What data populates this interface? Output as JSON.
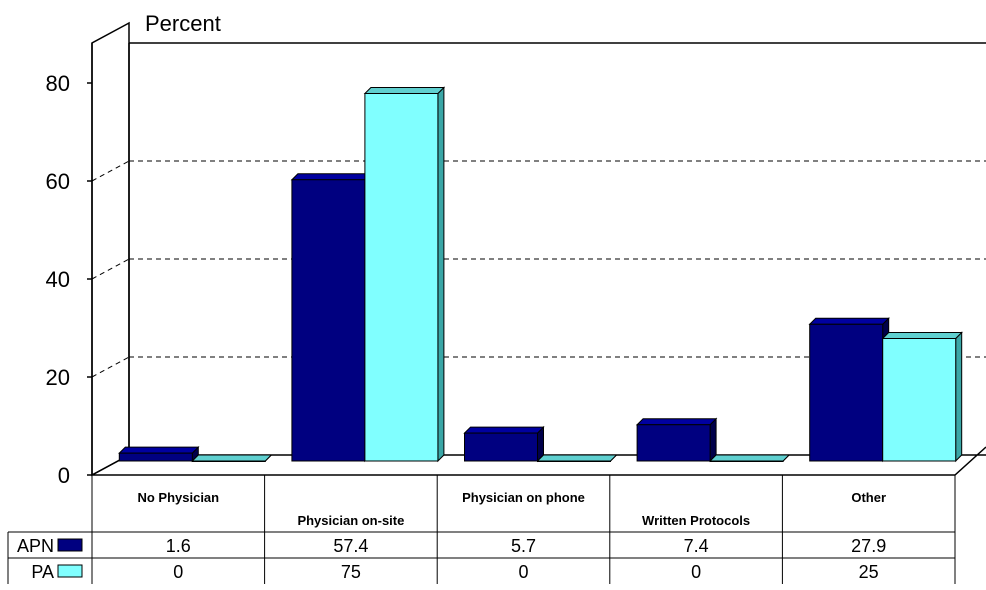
{
  "chart_data": {
    "type": "bar",
    "ylabel": "Percent",
    "ylim": [
      0,
      80
    ],
    "yticks": [
      0,
      20,
      40,
      60,
      80
    ],
    "grid": true,
    "categories": [
      "No Physician",
      "Physician on-site",
      "Physician on phone",
      "Written Protocols",
      "Other"
    ],
    "series": [
      {
        "name": "APN",
        "values": [
          1.6,
          57.4,
          5.7,
          7.4,
          27.9
        ],
        "labels": [
          "1.6",
          "57.4",
          "5.7",
          "7.4",
          "27.9"
        ],
        "color": "#000080"
      },
      {
        "name": "PA",
        "values": [
          0,
          75,
          0,
          0,
          25
        ],
        "labels": [
          "0",
          "75",
          "0",
          "0",
          "25"
        ],
        "color": "#80FFFF"
      }
    ],
    "legend": "table-rows"
  }
}
